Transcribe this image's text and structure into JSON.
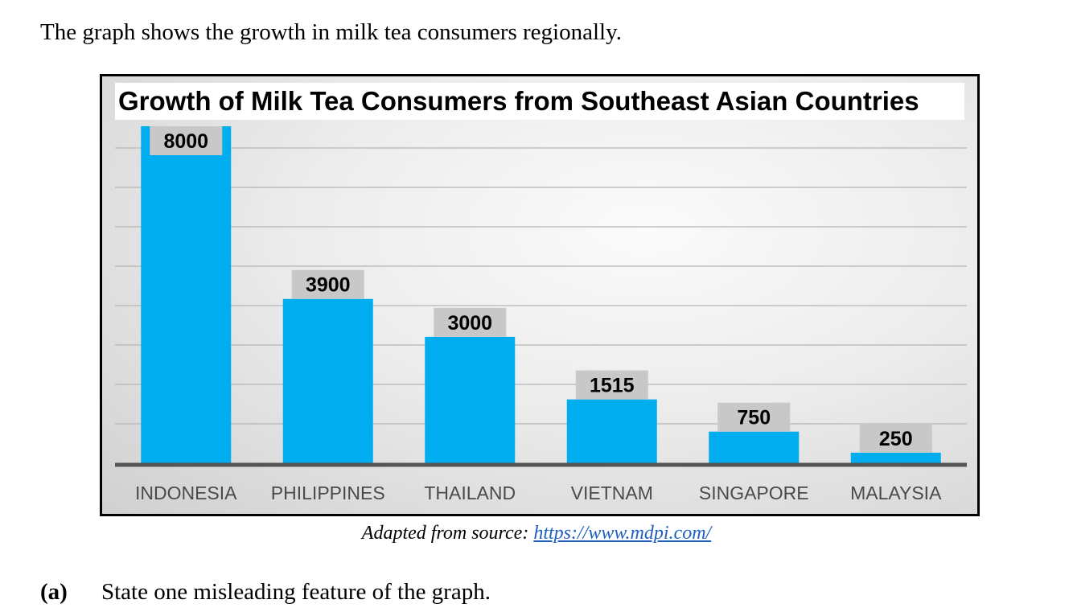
{
  "intro": "The graph shows the growth in milk tea consumers regionally.",
  "chart_data": {
    "type": "bar",
    "title": "Growth of Milk Tea Consumers from Southeast Asian Countries",
    "categories": [
      "INDONESIA",
      "PHILIPPINES",
      "THAILAND",
      "VIETNAM",
      "SINGAPORE",
      "MALAYSIA"
    ],
    "values": [
      8000,
      3900,
      3000,
      1515,
      750,
      250
    ],
    "data_labels": [
      "8000",
      "3900",
      "3000",
      "1515",
      "750",
      "250"
    ],
    "xlabel": "",
    "ylabel": "",
    "ylim": [
      0,
      8000
    ],
    "grid": true,
    "legend": "none",
    "bar_color": "#00aeef",
    "label_box_color": "#c8c8c8"
  },
  "source": {
    "prefix": "Adapted from source",
    "separator": ":",
    "link_text": "https://www.mdpi.com/"
  },
  "question": {
    "number": "(a)",
    "text": "State one misleading feature of the graph."
  }
}
